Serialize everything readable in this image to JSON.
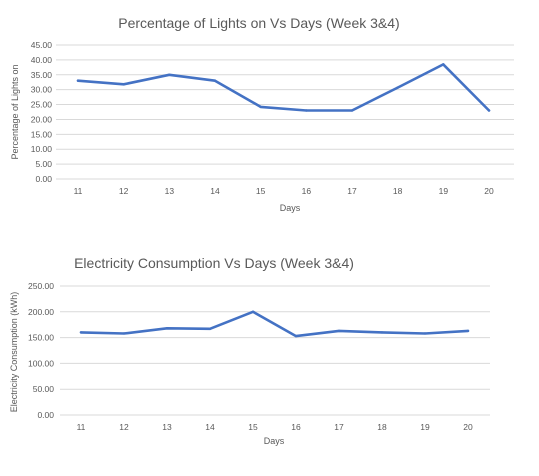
{
  "chart_data": [
    {
      "type": "line",
      "title": "Percentage of Lights on Vs Days (Week 3&4)",
      "xlabel": "Days",
      "ylabel": "Percentage of Lights on",
      "categories": [
        "11",
        "12",
        "13",
        "14",
        "15",
        "16",
        "17",
        "18",
        "19",
        "20"
      ],
      "series": [
        {
          "values": [
            33.0,
            31.8,
            35.0,
            33.0,
            24.2,
            23.0,
            23.0,
            30.7,
            38.5,
            23.0
          ]
        }
      ],
      "ylim": [
        0,
        45
      ],
      "yticks": [
        "0.00",
        "5.00",
        "10.00",
        "15.00",
        "20.00",
        "25.00",
        "30.00",
        "35.00",
        "40.00",
        "45.00"
      ],
      "grid": true,
      "line_color": "#4472c4"
    },
    {
      "type": "line",
      "title": "Electricity Consumption Vs Days (Week 3&4)",
      "xlabel": "Days",
      "ylabel": "Electricity Consumption (kWh)",
      "categories": [
        "11",
        "12",
        "13",
        "14",
        "15",
        "16",
        "17",
        "18",
        "19",
        "20"
      ],
      "series": [
        {
          "values": [
            160,
            158,
            168,
            167,
            200,
            153,
            163,
            160,
            158,
            163
          ]
        }
      ],
      "ylim": [
        0,
        250
      ],
      "yticks": [
        "0.00",
        "50.00",
        "100.00",
        "150.00",
        "200.00",
        "250.00"
      ],
      "grid": true,
      "line_color": "#4472c4"
    }
  ]
}
